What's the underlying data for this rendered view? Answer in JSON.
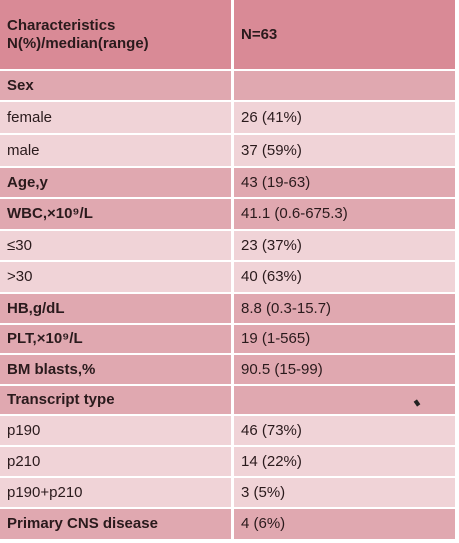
{
  "table": {
    "header": {
      "characteristics": "Characteristics",
      "subtitle": "N(%)/median(range)",
      "n": "N=63"
    },
    "rows": [
      {
        "label": "Sex",
        "value": ""
      },
      {
        "label": "female",
        "value": "26 (41%)"
      },
      {
        "label": "male",
        "value": "37 (59%)"
      },
      {
        "label": "Age,y",
        "value": "43 (19-63)"
      },
      {
        "label": "WBC,×10⁹/L",
        "value": "41.1 (0.6-675.3)"
      },
      {
        "label": "≤30",
        "value": "23 (37%)"
      },
      {
        "label": ">30",
        "value": "40 (63%)"
      },
      {
        "label": "HB,g/dL",
        "value": "8.8 (0.3-15.7)"
      },
      {
        "label": "PLT,×10⁹/L",
        "value": "19 (1-565)"
      },
      {
        "label": "BM blasts,%",
        "value": "90.5 (15-99)"
      },
      {
        "label": "Transcript type",
        "value": ""
      },
      {
        "label": "p190",
        "value": "46 (73%)"
      },
      {
        "label": "p210",
        "value": "14 (22%)"
      },
      {
        "label": "p190+p210",
        "value": "3 (5%)"
      },
      {
        "label": "Primary CNS disease",
        "value": "4 (6%)"
      }
    ]
  }
}
